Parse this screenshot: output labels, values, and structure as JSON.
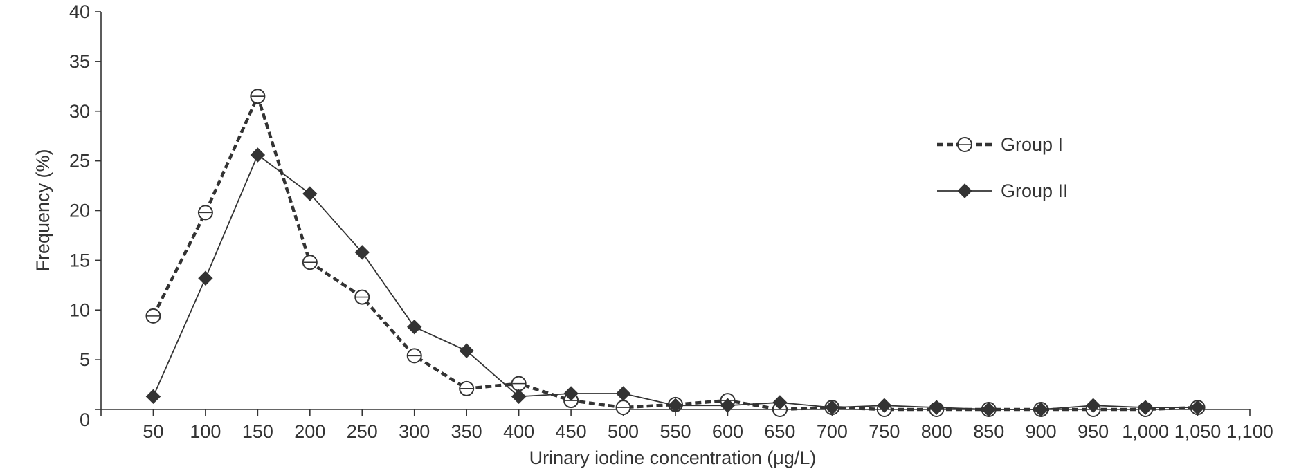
{
  "chart_data": {
    "type": "line",
    "xlabel": "Urinary iodine concentration (μg/L)",
    "ylabel": "Frequency (%)",
    "xlim": [
      0,
      1100
    ],
    "ylim": [
      0,
      40
    ],
    "x_ticks": [
      "50",
      "100",
      "150",
      "200",
      "250",
      "300",
      "350",
      "400",
      "450",
      "500",
      "550",
      "600",
      "650",
      "700",
      "750",
      "800",
      "850",
      "900",
      "950",
      "1,000",
      "1,050",
      "1,100"
    ],
    "y_ticks": [
      "0",
      "5",
      "10",
      "15",
      "20",
      "25",
      "30",
      "35",
      "40"
    ],
    "grid": false,
    "legend_position": "right",
    "x": [
      50,
      100,
      150,
      200,
      250,
      300,
      350,
      400,
      450,
      500,
      550,
      600,
      650,
      700,
      750,
      800,
      850,
      900,
      950,
      1000,
      1050
    ],
    "series": [
      {
        "name": "Group I",
        "style": "dashed",
        "marker": "open-circle",
        "color": "#333333",
        "values": [
          9.4,
          19.8,
          31.5,
          14.8,
          11.3,
          5.4,
          2.1,
          2.6,
          0.9,
          0.2,
          0.5,
          0.9,
          0.0,
          0.2,
          0.0,
          0.0,
          0.0,
          0.0,
          0.0,
          0.0,
          0.2
        ]
      },
      {
        "name": "Group II",
        "style": "solid",
        "marker": "filled-diamond",
        "color": "#333333",
        "values": [
          1.3,
          13.2,
          25.6,
          21.7,
          15.8,
          8.3,
          5.9,
          1.3,
          1.6,
          1.6,
          0.4,
          0.4,
          0.7,
          0.2,
          0.4,
          0.2,
          0.0,
          0.0,
          0.4,
          0.2,
          0.2
        ]
      }
    ]
  }
}
